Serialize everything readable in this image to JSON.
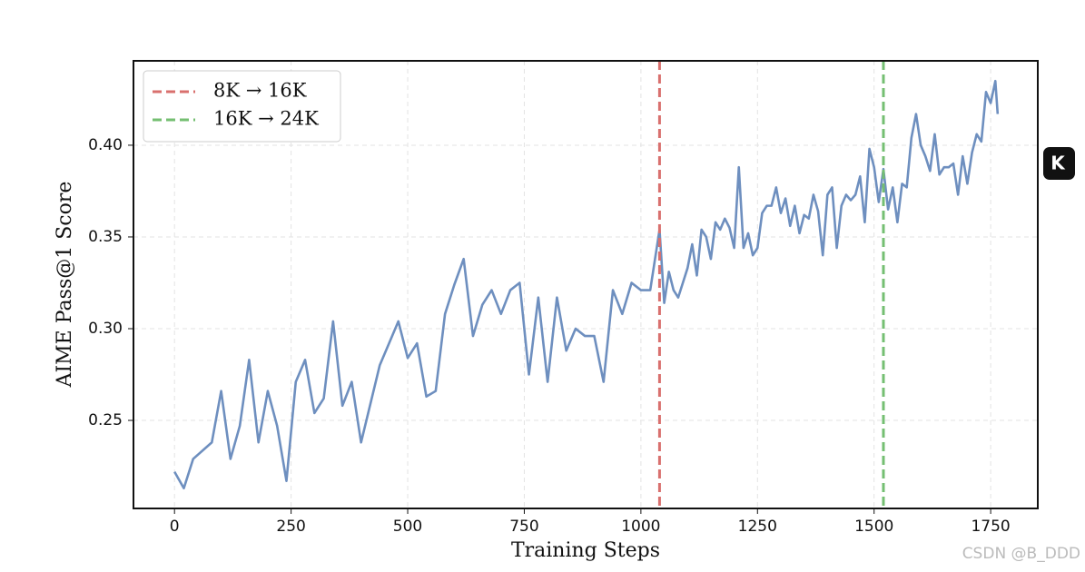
{
  "chart_data": {
    "type": "line",
    "xlabel": "Training Steps",
    "ylabel": "AIME Pass@1 Score",
    "x": [
      0,
      20,
      40,
      80,
      100,
      120,
      140,
      160,
      180,
      200,
      220,
      240,
      260,
      280,
      300,
      320,
      340,
      360,
      380,
      400,
      440,
      480,
      500,
      520,
      540,
      560,
      580,
      600,
      620,
      640,
      660,
      680,
      700,
      720,
      740,
      760,
      780,
      800,
      820,
      840,
      860,
      880,
      900,
      920,
      940,
      960,
      980,
      1000,
      1020,
      1040,
      1050,
      1060,
      1070,
      1080,
      1090,
      1100,
      1110,
      1120,
      1130,
      1140,
      1150,
      1160,
      1170,
      1180,
      1190,
      1200,
      1210,
      1220,
      1230,
      1240,
      1250,
      1260,
      1270,
      1280,
      1290,
      1300,
      1310,
      1320,
      1330,
      1340,
      1350,
      1360,
      1370,
      1380,
      1390,
      1400,
      1410,
      1420,
      1430,
      1440,
      1450,
      1460,
      1470,
      1480,
      1490,
      1500,
      1510,
      1520,
      1530,
      1540,
      1550,
      1560,
      1570,
      1580,
      1590,
      1600,
      1610,
      1620,
      1630,
      1640,
      1650,
      1660,
      1670,
      1680,
      1690,
      1700,
      1710,
      1720,
      1730,
      1740,
      1750,
      1760,
      1765
    ],
    "series": [
      {
        "name": "AIME Pass@1",
        "color": "#6e8fbf",
        "values": [
          0.222,
          0.213,
          0.229,
          0.238,
          0.266,
          0.229,
          0.247,
          0.283,
          0.238,
          0.266,
          0.247,
          0.217,
          0.271,
          0.283,
          0.254,
          0.262,
          0.304,
          0.258,
          0.271,
          0.238,
          0.28,
          0.304,
          0.284,
          0.292,
          0.263,
          0.266,
          0.308,
          0.324,
          0.338,
          0.296,
          0.313,
          0.321,
          0.308,
          0.321,
          0.325,
          0.275,
          0.317,
          0.271,
          0.317,
          0.288,
          0.3,
          0.296,
          0.296,
          0.271,
          0.321,
          0.308,
          0.325,
          0.321,
          0.321,
          0.354,
          0.314,
          0.331,
          0.321,
          0.317,
          0.325,
          0.333,
          0.346,
          0.329,
          0.354,
          0.35,
          0.338,
          0.358,
          0.354,
          0.36,
          0.355,
          0.344,
          0.388,
          0.344,
          0.352,
          0.34,
          0.344,
          0.363,
          0.367,
          0.367,
          0.377,
          0.363,
          0.371,
          0.356,
          0.367,
          0.352,
          0.362,
          0.36,
          0.373,
          0.364,
          0.34,
          0.373,
          0.377,
          0.344,
          0.367,
          0.373,
          0.37,
          0.373,
          0.383,
          0.358,
          0.398,
          0.388,
          0.369,
          0.387,
          0.365,
          0.377,
          0.358,
          0.379,
          0.377,
          0.404,
          0.417,
          0.4,
          0.394,
          0.386,
          0.406,
          0.384,
          0.388,
          0.388,
          0.39,
          0.373,
          0.394,
          0.379,
          0.396,
          0.406,
          0.402,
          0.429,
          0.423,
          0.435,
          0.417
        ]
      }
    ],
    "vlines": [
      {
        "name": "8K → 16K",
        "color": "#d9706e",
        "x": 1040
      },
      {
        "name": "16K → 24K",
        "color": "#75bf72",
        "x": 1520
      }
    ],
    "xlim": [
      -88,
      1851
    ],
    "ylim": [
      0.202,
      0.446
    ],
    "xticks": [
      0,
      250,
      500,
      750,
      1000,
      1250,
      1500,
      1750
    ],
    "yticks": [
      0.25,
      {
        "value": 0.3,
        "label": "0.30"
      },
      0.35,
      {
        "value": 0.4,
        "label": "0.40"
      }
    ],
    "grid": true,
    "legend": "upper left"
  },
  "watermark": "CSDN @B_DDD",
  "badge": "K"
}
